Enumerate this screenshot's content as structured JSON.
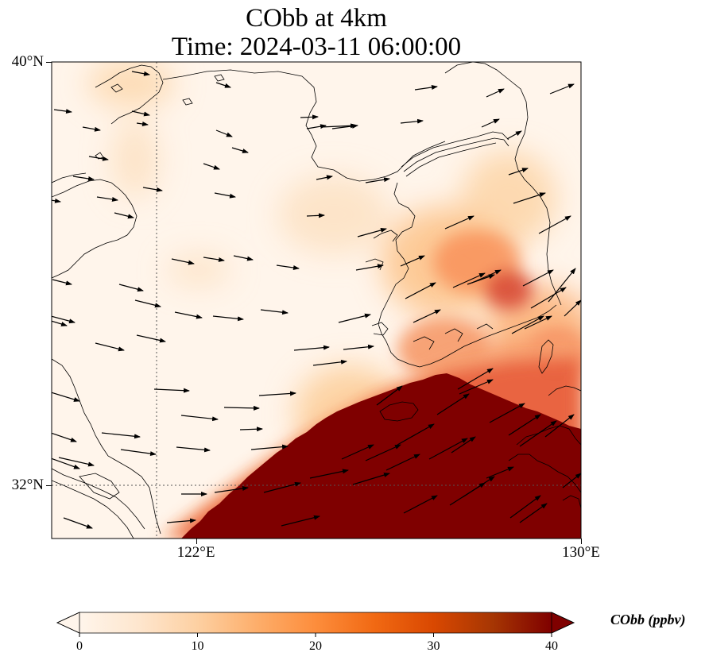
{
  "title": {
    "line1": "CObb at 4km",
    "line2": "Time: 2024-03-11 06:00:00"
  },
  "map": {
    "extent": {
      "lon_min": 119,
      "lon_max": 130,
      "lat_min": 31,
      "lat_max": 40
    },
    "lat_labels": [
      {
        "lat": 40,
        "label": "40°N"
      },
      {
        "lat": 32,
        "label": "32°N"
      }
    ],
    "lon_labels": [
      {
        "lon": 122,
        "label": "122°E"
      },
      {
        "lon": 130,
        "label": "130°E"
      }
    ],
    "gridlines": {
      "lon": [
        122
      ],
      "lat": [
        32
      ]
    }
  },
  "colorbar": {
    "label": "CObb (ppbv)",
    "ticks": [
      {
        "value": 0,
        "label": "0"
      },
      {
        "value": 10,
        "label": "10"
      },
      {
        "value": 20,
        "label": "20"
      },
      {
        "value": 30,
        "label": "30"
      },
      {
        "value": 40,
        "label": "40"
      }
    ],
    "range": [
      0,
      40
    ],
    "extend": "both",
    "colormap": [
      "#fff5eb",
      "#fee6ce",
      "#fdd0a2",
      "#fdae6b",
      "#fd8d3c",
      "#f16913",
      "#d94801",
      "#a63603",
      "#7f0000"
    ]
  },
  "colors": {
    "background": "#fff5eb",
    "high": "#7f0000",
    "coastline": "#000000"
  }
}
